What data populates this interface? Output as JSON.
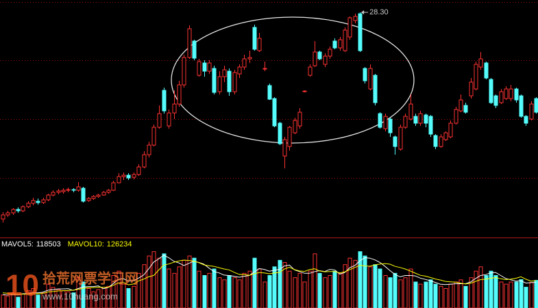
{
  "chart_data": [
    {
      "type": "candlestick",
      "ylim": [
        11.95,
        29.2
      ],
      "up_color": "#ff3232",
      "down_color": "#54fcfc",
      "open": [
        13.2,
        13.5,
        13.65,
        13.9,
        13.8,
        14.1,
        14.35,
        14.5,
        14.4,
        14.6,
        14.95,
        15.15,
        15.2,
        15.3,
        15.35,
        15.3,
        15.45,
        14.55,
        14.7,
        14.85,
        14.95,
        15.15,
        15.3,
        15.85,
        16.3,
        16.4,
        16.25,
        16.45,
        17.0,
        17.9,
        18.6,
        19.9,
        22.6,
        20.0,
        20.95,
        21.6,
        23.0,
        25.0,
        26.2,
        23.7,
        24.6,
        24.0,
        24.2,
        22.5,
        23.6,
        24.0,
        22.5,
        23.8,
        24.3,
        24.9,
        27.2,
        25.5,
        24.2,
        22.95,
        22.0,
        20.2,
        17.8,
        18.5,
        19.5,
        20.0,
        22.5,
        23.7,
        24.4,
        25.4,
        24.5,
        25.1,
        26.2,
        25.7,
        25.5,
        26.5,
        27.7,
        28.2,
        24.2,
        22.7,
        23.7,
        20.9,
        19.8,
        20.5,
        19.2,
        18.3,
        19.9,
        20.5,
        20.7,
        20.2,
        20.8,
        20.7,
        19.3,
        18.5,
        19.0,
        19.2,
        20.2,
        21.1,
        21.5,
        22.2,
        22.7,
        24.3,
        24.6,
        23.4,
        22.2,
        21.7,
        22.0,
        22.0,
        22.7,
        22.2,
        20.7,
        20.5,
        22.0
      ],
      "close": [
        13.5,
        13.65,
        13.9,
        13.8,
        14.1,
        14.35,
        14.55,
        14.4,
        14.6,
        14.95,
        15.15,
        15.25,
        15.3,
        15.35,
        15.3,
        15.55,
        14.5,
        14.7,
        14.85,
        14.95,
        15.15,
        15.3,
        15.85,
        16.3,
        16.4,
        16.2,
        16.45,
        17.0,
        17.9,
        18.6,
        19.9,
        20.9,
        21.1,
        20.95,
        21.6,
        23.0,
        25.0,
        27.1,
        24.95,
        24.7,
        24.0,
        24.6,
        22.45,
        23.6,
        24.1,
        22.5,
        23.9,
        24.3,
        24.9,
        25.0,
        25.6,
        26.4,
        24.2,
        21.95,
        20.0,
        18.7,
        19.0,
        19.9,
        20.4,
        21.0,
        22.55,
        24.3,
        25.4,
        24.9,
        25.1,
        25.6,
        25.7,
        26.3,
        27.0,
        27.9,
        28.0,
        25.5,
        23.3,
        24.2,
        21.7,
        19.9,
        20.7,
        19.5,
        18.5,
        19.9,
        20.7,
        21.6,
        20.2,
        20.9,
        20.2,
        19.4,
        18.5,
        19.2,
        19.5,
        20.2,
        21.2,
        21.9,
        21.0,
        23.2,
        24.5,
        24.9,
        23.5,
        21.7,
        21.5,
        22.5,
        22.7,
        22.7,
        21.9,
        20.7,
        20.2,
        21.6,
        21.0
      ],
      "high": [
        13.7,
        13.8,
        14.0,
        14.05,
        14.2,
        14.5,
        14.75,
        14.7,
        14.75,
        15.05,
        15.3,
        15.4,
        15.45,
        15.5,
        15.45,
        15.9,
        15.55,
        14.8,
        14.95,
        15.05,
        15.25,
        15.4,
        16.0,
        16.55,
        16.6,
        16.55,
        16.6,
        17.2,
        18.15,
        18.85,
        20.1,
        21.5,
        22.8,
        21.2,
        22.6,
        23.3,
        25.2,
        27.35,
        26.3,
        24.9,
        24.8,
        24.8,
        24.4,
        24.0,
        24.4,
        24.2,
        24.1,
        24.5,
        25.2,
        25.5,
        27.4,
        26.8,
        24.7,
        23.1,
        22.1,
        20.3,
        19.2,
        20.0,
        20.6,
        21.3,
        22.6,
        24.5,
        26.2,
        25.5,
        25.3,
        25.8,
        26.4,
        26.5,
        27.2,
        28.0,
        28.2,
        28.3,
        24.3,
        24.5,
        23.8,
        21.0,
        20.9,
        20.6,
        19.3,
        20.1,
        20.9,
        22.3,
        20.9,
        21.1,
        20.9,
        20.8,
        19.4,
        19.4,
        19.6,
        20.4,
        21.4,
        22.3,
        21.7,
        23.5,
        24.7,
        25.4,
        24.7,
        23.5,
        22.3,
        22.7,
        22.9,
        23.0,
        22.8,
        22.3,
        20.8,
        21.8,
        22.1
      ],
      "low": [
        12.95,
        13.35,
        13.5,
        13.65,
        13.7,
        14.0,
        14.2,
        14.25,
        14.3,
        14.5,
        14.85,
        15.0,
        15.05,
        15.15,
        15.15,
        15.2,
        14.4,
        14.45,
        14.6,
        14.75,
        14.9,
        15.05,
        15.25,
        15.8,
        16.05,
        16.05,
        16.1,
        16.35,
        16.9,
        17.7,
        18.5,
        19.8,
        20.9,
        19.8,
        20.5,
        21.4,
        22.8,
        24.9,
        24.8,
        23.6,
        23.6,
        23.8,
        22.3,
        22.3,
        23.2,
        22.2,
        22.3,
        23.5,
        24.1,
        24.6,
        25.5,
        25.4,
        24.0,
        21.9,
        19.9,
        18.6,
        16.9,
        18.2,
        19.4,
        19.8,
        22.45,
        23.6,
        24.3,
        24.8,
        24.3,
        24.9,
        25.6,
        25.5,
        25.4,
        26.3,
        27.5,
        25.4,
        23.1,
        22.6,
        21.5,
        19.8,
        19.6,
        19.2,
        17.9,
        18.2,
        19.8,
        20.4,
        20.0,
        20.0,
        19.9,
        19.2,
        18.3,
        18.4,
        18.9,
        19.1,
        20.1,
        21.0,
        20.9,
        22.0,
        22.6,
        24.1,
        23.4,
        21.6,
        21.3,
        21.6,
        21.9,
        21.8,
        21.7,
        20.6,
        20.0,
        20.4,
        20.9
      ],
      "annotations": [
        {
          "value": 28.3,
          "label": "28.30"
        }
      ]
    },
    {
      "type": "bar",
      "ylim": [
        0,
        300000
      ],
      "values": [
        60000,
        55000,
        70000,
        50000,
        65000,
        80000,
        90000,
        60000,
        70000,
        110000,
        95000,
        85000,
        80000,
        75000,
        70000,
        140000,
        120000,
        90000,
        75000,
        85000,
        95000,
        100000,
        150000,
        170000,
        110000,
        90000,
        100000,
        160000,
        200000,
        240000,
        260000,
        230000,
        250000,
        180000,
        160000,
        190000,
        220000,
        240000,
        230000,
        170000,
        150000,
        160000,
        180000,
        140000,
        130000,
        150000,
        140000,
        130000,
        160000,
        170000,
        230000,
        180000,
        120000,
        150000,
        190000,
        220000,
        210000,
        170000,
        140000,
        160000,
        120000,
        170000,
        250000,
        160000,
        140000,
        150000,
        170000,
        160000,
        200000,
        230000,
        220000,
        260000,
        240000,
        190000,
        200000,
        180000,
        150000,
        140000,
        160000,
        130000,
        140000,
        180000,
        120000,
        110000,
        120000,
        130000,
        110000,
        100000,
        90000,
        110000,
        120000,
        130000,
        100000,
        140000,
        170000,
        190000,
        150000,
        170000,
        150000,
        120000,
        110000,
        119825,
        120000,
        131000,
        96000,
        118000,
        127515
      ],
      "series": [
        {
          "name": "MAVOL5:",
          "color": "#ffffff",
          "values": [
            62000,
            60000,
            62000,
            60000,
            66000,
            66000,
            71000,
            70000,
            73000,
            82000,
            85000,
            88000,
            88000,
            89000,
            81000,
            90000,
            97000,
            99000,
            99000,
            102000,
            89000,
            95000,
            113000,
            133000,
            135000,
            124000,
            126000,
            138000,
            152000,
            180000,
            212000,
            226000,
            244000,
            232000,
            216000,
            208000,
            196000,
            206000,
            216000,
            210000,
            202000,
            184000,
            168000,
            162000,
            152000,
            150000,
            146000,
            142000,
            146000,
            150000,
            166000,
            182000,
            178000,
            170000,
            174000,
            178000,
            194000,
            198000,
            176000,
            168000,
            160000,
            160000,
            168000,
            172000,
            168000,
            178000,
            176000,
            156000,
            164000,
            186000,
            196000,
            218000,
            232000,
            230000,
            222000,
            210000,
            192000,
            172000,
            154000,
            144000,
            150000,
            150000,
            148000,
            138000,
            132000,
            126000,
            118000,
            110000,
            108000,
            110000,
            112000,
            112000,
            112000,
            120000,
            136000,
            150000,
            154000,
            162000,
            164000,
            150000,
            136000,
            130000,
            124000,
            126000,
            115000,
            117000,
            118503
          ]
        },
        {
          "name": "MAVOL10:",
          "color": "#ffff00",
          "values": [
            70000,
            68000,
            66000,
            64000,
            64000,
            64000,
            66000,
            66000,
            68000,
            74000,
            76000,
            79000,
            80000,
            81000,
            82000,
            86000,
            91000,
            94000,
            94000,
            96000,
            95000,
            96000,
            105000,
            116000,
            117000,
            107000,
            111000,
            125000,
            133000,
            144000,
            150000,
            175000,
            198000,
            203000,
            211000,
            217000,
            221000,
            219000,
            216000,
            209000,
            199000,
            195000,
            192000,
            186000,
            180000,
            176000,
            165000,
            155000,
            154000,
            151000,
            158000,
            164000,
            162000,
            158000,
            162000,
            164000,
            180000,
            188000,
            177000,
            171000,
            169000,
            177000,
            181000,
            171000,
            167000,
            168000,
            168000,
            162000,
            167000,
            177000,
            187000,
            197000,
            194000,
            193000,
            199000,
            203000,
            205000,
            202000,
            192000,
            187000,
            180000,
            171000,
            161000,
            151000,
            147000,
            141000,
            134000,
            129000,
            123000,
            121000,
            119000,
            115000,
            111000,
            114000,
            123000,
            131000,
            133000,
            137000,
            141000,
            135000,
            131000,
            133000,
            137000,
            144000,
            133000,
            124000,
            126234
          ]
        }
      ]
    }
  ],
  "watermark": [
    "10",
    "拾荒网",
    "票学习网",
    "www.10huang.com"
  ]
}
